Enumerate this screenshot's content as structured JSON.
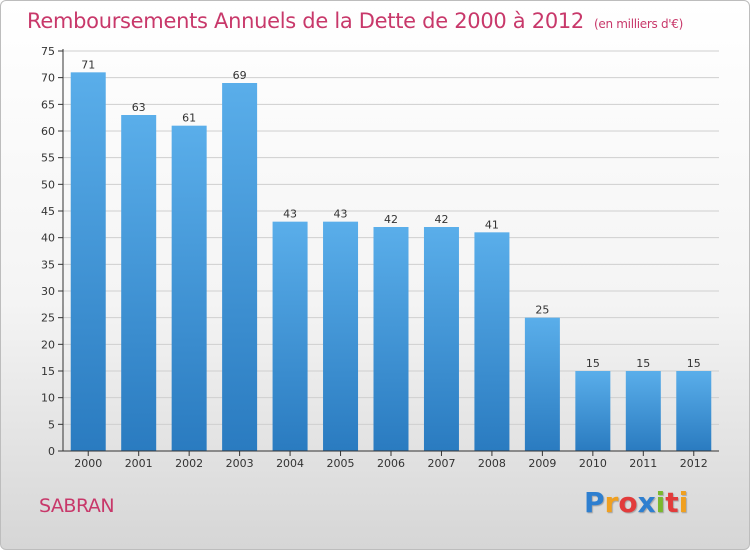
{
  "title": "Remboursements Annuels de la Dette de 2000 à 2012",
  "subtitle": "(en milliers d'€)",
  "place": "SABRAN",
  "logo": {
    "letters": [
      "P",
      "r",
      "o",
      "x",
      "i",
      "t",
      "i"
    ],
    "colors": [
      "#2e7fd0",
      "#f0a020",
      "#e23b3b",
      "#2e7fd0",
      "#7ab82e",
      "#e23b3b",
      "#f0a020"
    ]
  },
  "colors": {
    "bar_top": "#5aaeea",
    "bar_bottom": "#2a7bc0",
    "grid": "#cfcfcf",
    "axis": "#333333",
    "accent": "#c8386a"
  },
  "chart_data": {
    "type": "bar",
    "categories": [
      "2000",
      "2001",
      "2002",
      "2003",
      "2004",
      "2005",
      "2006",
      "2007",
      "2008",
      "2009",
      "2010",
      "2011",
      "2012"
    ],
    "values": [
      71,
      63,
      61,
      69,
      43,
      43,
      42,
      42,
      41,
      25,
      15,
      15,
      15
    ],
    "ylim": [
      0,
      75
    ],
    "yticks": [
      0,
      5,
      10,
      15,
      20,
      25,
      30,
      35,
      40,
      45,
      50,
      55,
      60,
      65,
      70,
      75
    ],
    "grid": true
  }
}
